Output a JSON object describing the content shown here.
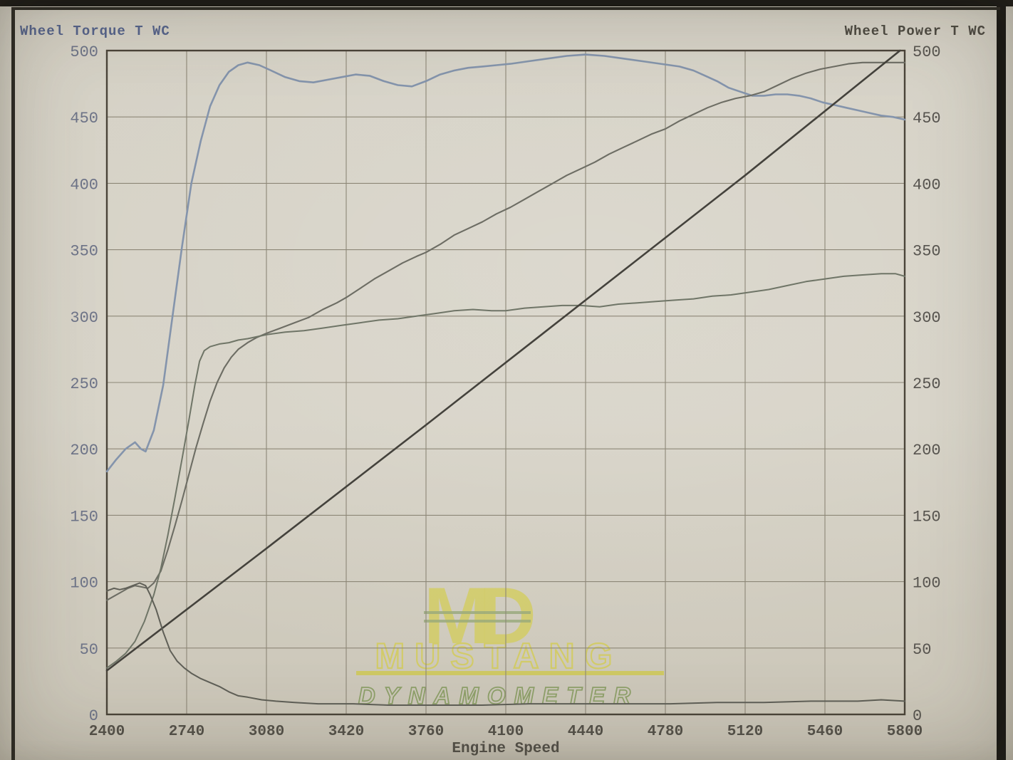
{
  "page": {
    "torque_axis_title": "Wheel Torque T WC",
    "power_axis_title": "Wheel Power T WC",
    "x_axis_title": "Engine Speed"
  },
  "watermark": {
    "logo_m": "M",
    "logo_d": "D",
    "line1": "MUSTANG",
    "line2": "DYNAMOMETER",
    "yellow": "#d3cc55",
    "green": "#7f9757"
  },
  "colors": {
    "grid": "#8d8777",
    "chart_border": "#4a4439",
    "left_tick_label": "#6e7488",
    "right_tick_label": "#585550",
    "bottom_tick_label": "#55524a"
  },
  "chart_data": {
    "type": "line",
    "title": "",
    "xlabel": "Engine Speed",
    "ylabel_left": "Wheel Torque T WC",
    "ylabel_right": "Wheel Power T WC",
    "xlim": [
      2400,
      5800
    ],
    "ylim": [
      0,
      500
    ],
    "x_ticks": [
      2400,
      2740,
      3080,
      3420,
      3760,
      4100,
      4440,
      4780,
      5120,
      5460,
      5800
    ],
    "y_ticks": [
      0,
      50,
      100,
      150,
      200,
      250,
      300,
      350,
      400,
      450,
      500
    ],
    "grid": true,
    "legend_position": "none",
    "series": [
      {
        "name": "torque-curve-blue",
        "color": "#8494ac",
        "width": 2.6,
        "points": [
          [
            2400,
            183
          ],
          [
            2440,
            192
          ],
          [
            2480,
            200
          ],
          [
            2520,
            205
          ],
          [
            2545,
            200
          ],
          [
            2565,
            198
          ],
          [
            2600,
            214
          ],
          [
            2640,
            248
          ],
          [
            2680,
            300
          ],
          [
            2720,
            352
          ],
          [
            2760,
            400
          ],
          [
            2800,
            432
          ],
          [
            2840,
            458
          ],
          [
            2880,
            474
          ],
          [
            2920,
            484
          ],
          [
            2960,
            489
          ],
          [
            3000,
            491
          ],
          [
            3050,
            489
          ],
          [
            3100,
            485
          ],
          [
            3160,
            480
          ],
          [
            3220,
            477
          ],
          [
            3280,
            476
          ],
          [
            3340,
            478
          ],
          [
            3400,
            480
          ],
          [
            3460,
            482
          ],
          [
            3520,
            481
          ],
          [
            3580,
            477
          ],
          [
            3640,
            474
          ],
          [
            3700,
            473
          ],
          [
            3760,
            477
          ],
          [
            3820,
            482
          ],
          [
            3880,
            485
          ],
          [
            3940,
            487
          ],
          [
            4000,
            488
          ],
          [
            4060,
            489
          ],
          [
            4120,
            490
          ],
          [
            4200,
            492
          ],
          [
            4280,
            494
          ],
          [
            4360,
            496
          ],
          [
            4440,
            497
          ],
          [
            4520,
            496
          ],
          [
            4600,
            494
          ],
          [
            4680,
            492
          ],
          [
            4760,
            490
          ],
          [
            4840,
            488
          ],
          [
            4900,
            485
          ],
          [
            4950,
            481
          ],
          [
            5000,
            477
          ],
          [
            5050,
            472
          ],
          [
            5100,
            469
          ],
          [
            5150,
            466
          ],
          [
            5200,
            466
          ],
          [
            5250,
            467
          ],
          [
            5300,
            467
          ],
          [
            5350,
            466
          ],
          [
            5400,
            464
          ],
          [
            5450,
            461
          ],
          [
            5500,
            459
          ],
          [
            5550,
            457
          ],
          [
            5600,
            455
          ],
          [
            5650,
            453
          ],
          [
            5700,
            451
          ],
          [
            5750,
            450
          ],
          [
            5800,
            448
          ]
        ]
      },
      {
        "name": "power-curve",
        "color": "#6d6d64",
        "width": 2.1,
        "points": [
          [
            2400,
            86
          ],
          [
            2430,
            89
          ],
          [
            2460,
            92
          ],
          [
            2490,
            95
          ],
          [
            2520,
            97
          ],
          [
            2550,
            96
          ],
          [
            2575,
            95
          ],
          [
            2600,
            99
          ],
          [
            2630,
            108
          ],
          [
            2660,
            124
          ],
          [
            2690,
            142
          ],
          [
            2720,
            161
          ],
          [
            2750,
            181
          ],
          [
            2780,
            201
          ],
          [
            2810,
            219
          ],
          [
            2840,
            236
          ],
          [
            2870,
            250
          ],
          [
            2900,
            261
          ],
          [
            2930,
            269
          ],
          [
            2960,
            275
          ],
          [
            3000,
            280
          ],
          [
            3040,
            284
          ],
          [
            3080,
            287
          ],
          [
            3140,
            291
          ],
          [
            3200,
            295
          ],
          [
            3260,
            299
          ],
          [
            3320,
            305
          ],
          [
            3380,
            310
          ],
          [
            3420,
            314
          ],
          [
            3480,
            321
          ],
          [
            3540,
            328
          ],
          [
            3600,
            334
          ],
          [
            3660,
            340
          ],
          [
            3720,
            345
          ],
          [
            3760,
            348
          ],
          [
            3820,
            354
          ],
          [
            3880,
            361
          ],
          [
            3940,
            366
          ],
          [
            4000,
            371
          ],
          [
            4060,
            377
          ],
          [
            4120,
            382
          ],
          [
            4180,
            388
          ],
          [
            4240,
            394
          ],
          [
            4300,
            400
          ],
          [
            4360,
            406
          ],
          [
            4420,
            411
          ],
          [
            4480,
            416
          ],
          [
            4540,
            422
          ],
          [
            4600,
            427
          ],
          [
            4660,
            432
          ],
          [
            4720,
            437
          ],
          [
            4780,
            441
          ],
          [
            4840,
            447
          ],
          [
            4900,
            452
          ],
          [
            4960,
            457
          ],
          [
            5020,
            461
          ],
          [
            5080,
            464
          ],
          [
            5140,
            466
          ],
          [
            5200,
            469
          ],
          [
            5260,
            474
          ],
          [
            5320,
            479
          ],
          [
            5380,
            483
          ],
          [
            5440,
            486
          ],
          [
            5500,
            488
          ],
          [
            5560,
            490
          ],
          [
            5620,
            491
          ],
          [
            5680,
            491
          ],
          [
            5740,
            491
          ],
          [
            5800,
            491
          ]
        ]
      },
      {
        "name": "secondary-torque-curve",
        "color": "#6f7567",
        "width": 2.0,
        "points": [
          [
            2400,
            35
          ],
          [
            2440,
            40
          ],
          [
            2480,
            46
          ],
          [
            2520,
            55
          ],
          [
            2560,
            70
          ],
          [
            2600,
            90
          ],
          [
            2630,
            110
          ],
          [
            2660,
            135
          ],
          [
            2690,
            163
          ],
          [
            2720,
            192
          ],
          [
            2750,
            222
          ],
          [
            2775,
            248
          ],
          [
            2795,
            266
          ],
          [
            2815,
            274
          ],
          [
            2840,
            277
          ],
          [
            2880,
            279
          ],
          [
            2920,
            280
          ],
          [
            2960,
            282
          ],
          [
            3000,
            283
          ],
          [
            3080,
            286
          ],
          [
            3160,
            288
          ],
          [
            3240,
            289
          ],
          [
            3320,
            291
          ],
          [
            3400,
            293
          ],
          [
            3480,
            295
          ],
          [
            3560,
            297
          ],
          [
            3640,
            298
          ],
          [
            3720,
            300
          ],
          [
            3800,
            302
          ],
          [
            3880,
            304
          ],
          [
            3960,
            305
          ],
          [
            4040,
            304
          ],
          [
            4100,
            304
          ],
          [
            4180,
            306
          ],
          [
            4260,
            307
          ],
          [
            4340,
            308
          ],
          [
            4420,
            308
          ],
          [
            4500,
            307
          ],
          [
            4580,
            309
          ],
          [
            4660,
            310
          ],
          [
            4740,
            311
          ],
          [
            4820,
            312
          ],
          [
            4900,
            313
          ],
          [
            4980,
            315
          ],
          [
            5060,
            316
          ],
          [
            5140,
            318
          ],
          [
            5220,
            320
          ],
          [
            5300,
            323
          ],
          [
            5380,
            326
          ],
          [
            5460,
            328
          ],
          [
            5540,
            330
          ],
          [
            5620,
            331
          ],
          [
            5700,
            332
          ],
          [
            5760,
            332
          ],
          [
            5800,
            330
          ]
        ]
      },
      {
        "name": "straight-diagonal-trace",
        "color": "#44423c",
        "width": 2.6,
        "points": [
          [
            2400,
            33
          ],
          [
            3080,
            125
          ],
          [
            3760,
            218
          ],
          [
            4440,
            312
          ],
          [
            5120,
            406
          ],
          [
            5780,
            500
          ]
        ]
      },
      {
        "name": "decaying-trace",
        "color": "#5f5f57",
        "width": 2.0,
        "points": [
          [
            2400,
            93
          ],
          [
            2430,
            95
          ],
          [
            2455,
            94
          ],
          [
            2480,
            95
          ],
          [
            2510,
            97
          ],
          [
            2540,
            99
          ],
          [
            2565,
            97
          ],
          [
            2585,
            90
          ],
          [
            2610,
            79
          ],
          [
            2640,
            62
          ],
          [
            2670,
            48
          ],
          [
            2700,
            40
          ],
          [
            2730,
            35
          ],
          [
            2760,
            31
          ],
          [
            2800,
            27
          ],
          [
            2840,
            24
          ],
          [
            2880,
            21
          ],
          [
            2920,
            17
          ],
          [
            2960,
            14
          ],
          [
            3000,
            13
          ],
          [
            3060,
            11
          ],
          [
            3120,
            10
          ],
          [
            3200,
            9
          ],
          [
            3300,
            8
          ],
          [
            3450,
            8
          ],
          [
            3600,
            7
          ],
          [
            3800,
            7
          ],
          [
            4000,
            7
          ],
          [
            4200,
            8
          ],
          [
            4400,
            8
          ],
          [
            4600,
            8
          ],
          [
            4800,
            8
          ],
          [
            5000,
            9
          ],
          [
            5200,
            9
          ],
          [
            5400,
            10
          ],
          [
            5600,
            10
          ],
          [
            5700,
            11
          ],
          [
            5800,
            10
          ]
        ]
      }
    ]
  }
}
